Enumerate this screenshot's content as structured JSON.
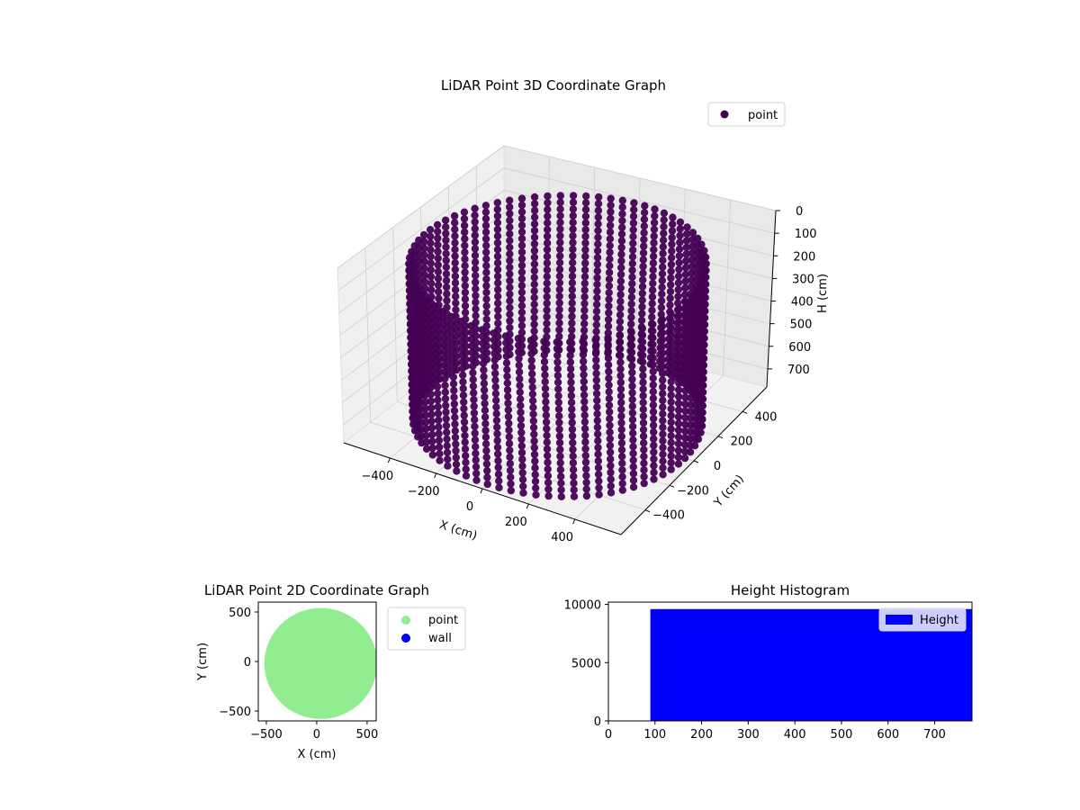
{
  "chart_data": [
    {
      "type": "scatter3d",
      "title": "LiDAR Point 3D Coordinate Graph",
      "xlabel": "X (cm)",
      "ylabel": "Y (cm)",
      "zlabel": "H (cm)",
      "x_ticks": [
        "−400",
        "−200",
        "0",
        "200",
        "400"
      ],
      "y_ticks": [
        "−400",
        "−200",
        "0",
        "200",
        "400"
      ],
      "z_ticks": [
        "0",
        "100",
        "200",
        "300",
        "400",
        "500",
        "600",
        "700"
      ],
      "xlim": [
        -600,
        600
      ],
      "ylim": [
        -600,
        600
      ],
      "zlim": [
        0,
        780
      ],
      "z_inverted": true,
      "series": [
        {
          "name": "point",
          "color": "#440154",
          "shape": "ring",
          "radius": 560,
          "h_range": [
            90,
            780
          ]
        }
      ],
      "legend": {
        "position": "top-right"
      },
      "grid": true
    },
    {
      "type": "scatter",
      "title": "LiDAR Point 2D Coordinate Graph",
      "xlabel": "X (cm)",
      "ylabel": "Y (cm)",
      "x_ticks": [
        "−500",
        "0",
        "500"
      ],
      "y_ticks": [
        "−500",
        "0",
        "500"
      ],
      "xlim": [
        -580,
        590
      ],
      "ylim": [
        -600,
        600
      ],
      "series": [
        {
          "name": "point",
          "color": "#90ee90",
          "shape": "ring-cloud",
          "radius": 560
        },
        {
          "name": "wall",
          "color": "#0000ff"
        }
      ],
      "legend": {
        "position": "outside-right"
      }
    },
    {
      "type": "histogram",
      "title": "Height Histogram",
      "x_ticks": [
        "0",
        "100",
        "200",
        "300",
        "400",
        "500",
        "600",
        "700"
      ],
      "y_ticks": [
        "0",
        "5000",
        "10000"
      ],
      "xlim": [
        0,
        780
      ],
      "ylim": [
        0,
        10200
      ],
      "bins": [
        {
          "x0": 90,
          "x1": 780,
          "count": 9600
        }
      ],
      "series": [
        {
          "name": "Height",
          "color": "#0000ff"
        }
      ],
      "legend": {
        "position": "top-right"
      }
    }
  ]
}
